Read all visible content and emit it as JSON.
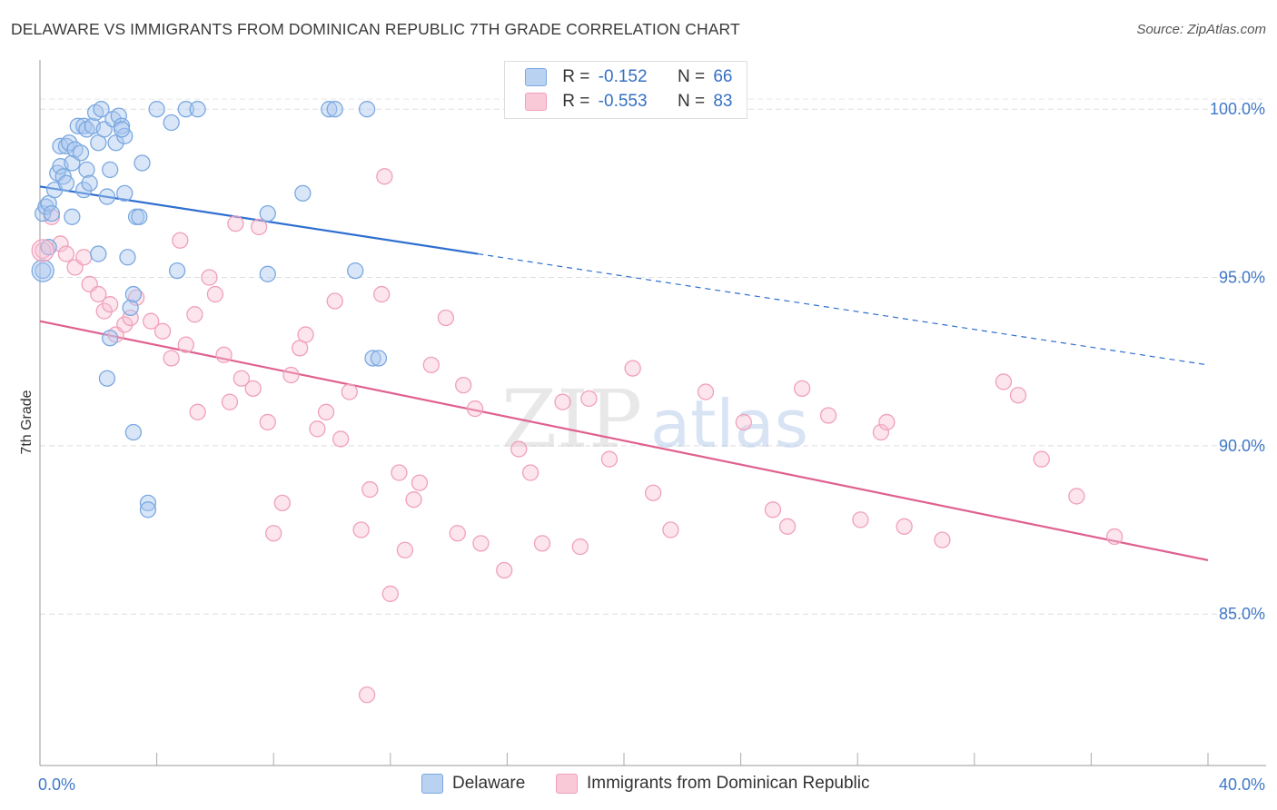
{
  "title": "DELAWARE VS IMMIGRANTS FROM DOMINICAN REPUBLIC 7TH GRADE CORRELATION CHART",
  "source": "Source: ZipAtlas.com",
  "watermark": {
    "zip": "ZIP",
    "atlas": "atlas"
  },
  "legend": {
    "r_label": "R =",
    "n_label": "N =",
    "rows": [
      {
        "r": "-0.152",
        "n": "66"
      },
      {
        "r": "-0.553",
        "n": "83"
      }
    ]
  },
  "chart_data": {
    "type": "scatter",
    "title": "DELAWARE VS IMMIGRANTS FROM DOMINICAN REPUBLIC 7TH GRADE CORRELATION CHART",
    "xlabel": "",
    "ylabel": "7th Grade",
    "xlim": [
      0,
      40
    ],
    "ylim": [
      80.5,
      101.3
    ],
    "x_tick_labels": [
      "0.0%",
      "40.0%"
    ],
    "y_ticks": [
      85,
      90,
      95,
      100
    ],
    "y_tick_labels": [
      "85.0%",
      "90.0%",
      "95.0%",
      "100.0%"
    ],
    "grid": true,
    "legend_position": "top-center",
    "colors": {
      "Delaware": "#7aa8e0",
      "Immigrants from Dominican Republic": "#f0a0bb",
      "blue_line": "#2f6fd0",
      "pink_line": "#e06090"
    },
    "series": [
      {
        "name": "Delaware",
        "r": -0.152,
        "n": 66,
        "trend": {
          "x": [
            0,
            15
          ],
          "y": [
            97.7,
            95.7
          ],
          "dashed_to": {
            "x": 40,
            "y": 92.4
          }
        },
        "points": [
          [
            0.1,
            95.2
          ],
          [
            0.1,
            96.9
          ],
          [
            0.2,
            97.1
          ],
          [
            0.3,
            95.9
          ],
          [
            0.3,
            97.2
          ],
          [
            0.4,
            96.9
          ],
          [
            0.5,
            97.6
          ],
          [
            0.6,
            98.1
          ],
          [
            0.7,
            98.3
          ],
          [
            0.7,
            98.9
          ],
          [
            0.8,
            98.0
          ],
          [
            0.9,
            98.9
          ],
          [
            0.9,
            97.8
          ],
          [
            1.0,
            99.0
          ],
          [
            1.1,
            98.4
          ],
          [
            1.2,
            98.8
          ],
          [
            1.1,
            96.8
          ],
          [
            1.3,
            99.5
          ],
          [
            1.4,
            98.7
          ],
          [
            1.5,
            99.5
          ],
          [
            1.6,
            99.4
          ],
          [
            1.5,
            97.6
          ],
          [
            1.6,
            98.2
          ],
          [
            1.8,
            99.5
          ],
          [
            1.7,
            97.8
          ],
          [
            1.9,
            99.9
          ],
          [
            2.0,
            99.0
          ],
          [
            2.1,
            100.0
          ],
          [
            2.2,
            99.4
          ],
          [
            2.0,
            95.7
          ],
          [
            2.3,
            97.4
          ],
          [
            2.4,
            98.2
          ],
          [
            2.3,
            92.0
          ],
          [
            2.4,
            93.2
          ],
          [
            2.5,
            99.7
          ],
          [
            2.6,
            99.0
          ],
          [
            2.7,
            99.8
          ],
          [
            2.8,
            99.5
          ],
          [
            2.9,
            99.2
          ],
          [
            2.8,
            99.4
          ],
          [
            2.9,
            97.5
          ],
          [
            3.0,
            95.6
          ],
          [
            3.1,
            94.1
          ],
          [
            3.2,
            94.5
          ],
          [
            3.2,
            90.4
          ],
          [
            3.3,
            96.8
          ],
          [
            3.4,
            96.8
          ],
          [
            3.5,
            98.4
          ],
          [
            3.7,
            88.3
          ],
          [
            3.7,
            88.1
          ],
          [
            4.0,
            100.0
          ],
          [
            4.5,
            99.6
          ],
          [
            4.7,
            95.2
          ],
          [
            5.0,
            100.0
          ],
          [
            5.4,
            100.0
          ],
          [
            7.8,
            95.1
          ],
          [
            7.8,
            96.9
          ],
          [
            9.0,
            97.5
          ],
          [
            9.9,
            100.0
          ],
          [
            10.1,
            100.0
          ],
          [
            10.8,
            95.2
          ],
          [
            11.2,
            100.0
          ],
          [
            11.4,
            92.6
          ],
          [
            11.6,
            92.6
          ]
        ]
      },
      {
        "name": "Immigrants from Dominican Republic",
        "r": -0.553,
        "n": 83,
        "trend": {
          "x": [
            0,
            40
          ],
          "y": [
            93.7,
            86.6
          ]
        },
        "points": [
          [
            0.1,
            95.8
          ],
          [
            0.4,
            96.8
          ],
          [
            0.7,
            96.0
          ],
          [
            0.9,
            95.7
          ],
          [
            1.2,
            95.3
          ],
          [
            1.5,
            95.6
          ],
          [
            1.7,
            94.8
          ],
          [
            2.0,
            94.5
          ],
          [
            2.2,
            94.0
          ],
          [
            2.4,
            94.2
          ],
          [
            2.6,
            93.3
          ],
          [
            2.9,
            93.6
          ],
          [
            3.1,
            93.8
          ],
          [
            3.3,
            94.4
          ],
          [
            3.8,
            93.7
          ],
          [
            4.2,
            93.4
          ],
          [
            4.5,
            92.6
          ],
          [
            4.8,
            96.1
          ],
          [
            5.0,
            93.0
          ],
          [
            5.3,
            93.9
          ],
          [
            5.4,
            91.0
          ],
          [
            5.8,
            95.0
          ],
          [
            6.0,
            94.5
          ],
          [
            6.3,
            92.7
          ],
          [
            6.5,
            91.3
          ],
          [
            6.7,
            96.6
          ],
          [
            6.9,
            92.0
          ],
          [
            7.3,
            91.7
          ],
          [
            7.5,
            96.5
          ],
          [
            7.8,
            90.7
          ],
          [
            8.0,
            87.4
          ],
          [
            8.3,
            88.3
          ],
          [
            8.6,
            92.1
          ],
          [
            8.9,
            92.9
          ],
          [
            9.1,
            93.3
          ],
          [
            9.5,
            90.5
          ],
          [
            9.8,
            91.0
          ],
          [
            10.1,
            94.3
          ],
          [
            10.3,
            90.2
          ],
          [
            10.6,
            91.6
          ],
          [
            11.0,
            87.5
          ],
          [
            11.3,
            88.7
          ],
          [
            11.2,
            82.6
          ],
          [
            11.7,
            94.5
          ],
          [
            11.8,
            98.0
          ],
          [
            12.0,
            85.6
          ],
          [
            12.3,
            89.2
          ],
          [
            12.5,
            86.9
          ],
          [
            12.8,
            88.4
          ],
          [
            13.0,
            88.9
          ],
          [
            13.4,
            92.4
          ],
          [
            13.9,
            93.8
          ],
          [
            14.3,
            87.4
          ],
          [
            14.5,
            91.8
          ],
          [
            14.9,
            91.1
          ],
          [
            15.1,
            87.1
          ],
          [
            15.9,
            86.3
          ],
          [
            16.4,
            89.9
          ],
          [
            16.8,
            89.2
          ],
          [
            17.2,
            87.1
          ],
          [
            17.9,
            91.3
          ],
          [
            18.5,
            87.0
          ],
          [
            18.8,
            91.4
          ],
          [
            19.5,
            89.6
          ],
          [
            20.3,
            92.3
          ],
          [
            21.0,
            88.6
          ],
          [
            21.6,
            87.5
          ],
          [
            22.8,
            91.6
          ],
          [
            24.1,
            90.7
          ],
          [
            25.1,
            88.1
          ],
          [
            25.6,
            87.6
          ],
          [
            26.1,
            91.7
          ],
          [
            27.0,
            90.9
          ],
          [
            28.1,
            87.8
          ],
          [
            28.8,
            90.4
          ],
          [
            29.0,
            90.7
          ],
          [
            29.6,
            87.6
          ],
          [
            30.9,
            87.2
          ],
          [
            33.0,
            91.9
          ],
          [
            33.5,
            91.5
          ],
          [
            34.3,
            89.6
          ],
          [
            35.5,
            88.5
          ],
          [
            36.8,
            87.3
          ]
        ]
      }
    ]
  }
}
